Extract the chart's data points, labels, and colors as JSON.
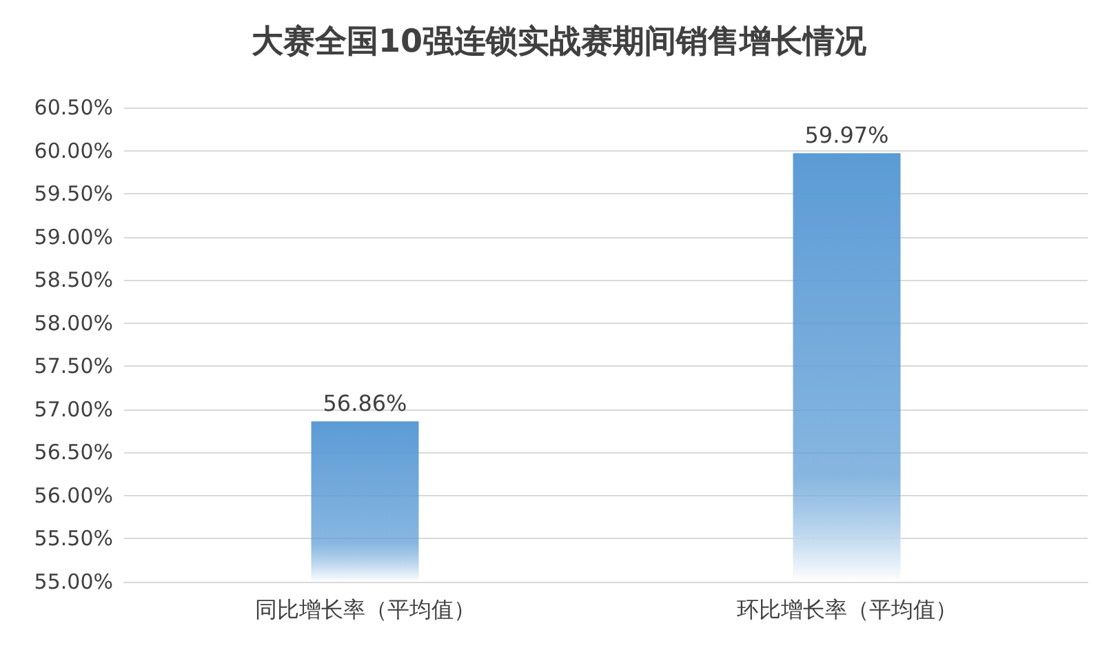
{
  "chart_data": {
    "type": "bar",
    "title": "大赛全国10强连锁实战赛期间销售增长情况",
    "categories": [
      "同比增长率（平均值）",
      "环比增长率（平均值）"
    ],
    "values": [
      56.86,
      59.97
    ],
    "color": "#5b9bd5",
    "value_labels": [
      "56.86%",
      "59.97%"
    ],
    "ylim": [
      55,
      60.5
    ],
    "yticks": [
      {
        "value": 55,
        "label": "55.00%"
      },
      {
        "value": 55.5,
        "label": "55.50%"
      },
      {
        "value": 56,
        "label": "56.00%"
      },
      {
        "value": 56.5,
        "label": "56.50%"
      },
      {
        "value": 57,
        "label": "57.00%"
      },
      {
        "value": 57.5,
        "label": "57.50%"
      },
      {
        "value": 58,
        "label": "58.00%"
      },
      {
        "value": 58.5,
        "label": "58.50%"
      },
      {
        "value": 59,
        "label": "59.00%"
      },
      {
        "value": 59.5,
        "label": "59.50%"
      },
      {
        "value": 60,
        "label": "60.00%"
      },
      {
        "value": 60.5,
        "label": "60.50%"
      }
    ],
    "grid": "y"
  }
}
